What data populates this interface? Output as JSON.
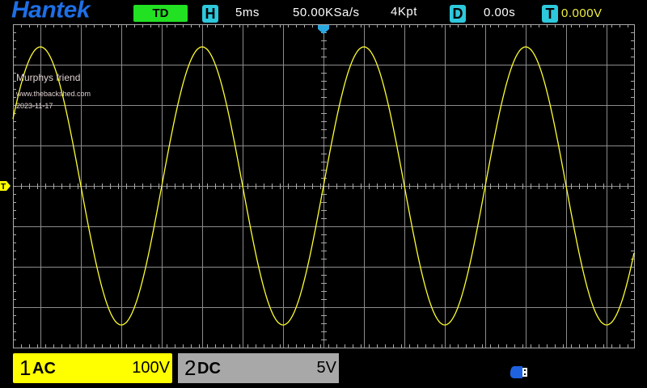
{
  "header": {
    "brand": "Hantek",
    "mode": "TD",
    "h_badge": "H",
    "timebase": "5ms",
    "sample_rate": "50.00KSa/s",
    "memory_depth": "4Kpt",
    "d_badge": "D",
    "delay": "0.00s",
    "t_badge": "T",
    "trigger_level": "0.000V"
  },
  "overlay": {
    "line1": "Murphys friend",
    "line2": "www.thebackshed.com",
    "line3": "2023-11-17"
  },
  "markers": {
    "trigger_level_marker": "T"
  },
  "waveform": {
    "channel": 1,
    "shape": "sine",
    "period_ms": 20,
    "amplitude_div": 3.44,
    "color": "#ffff30"
  },
  "channels": [
    {
      "number": "1",
      "coupling": "AC",
      "scale": "100V",
      "color": "#ffff00"
    },
    {
      "number": "2",
      "coupling": "DC",
      "scale": "5V",
      "color": "#a8a8a8"
    }
  ],
  "status": {
    "usb_icon": "usb-icon"
  },
  "colors": {
    "brand": "#1e6fe6",
    "badge": "#2ec8dc",
    "mode": "#22e022",
    "grid": "#8c8c8c"
  }
}
